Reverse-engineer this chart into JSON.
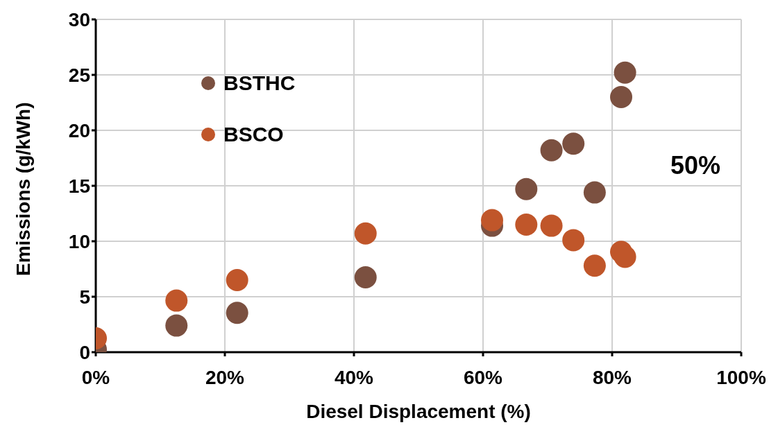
{
  "chart_data": {
    "type": "scatter",
    "xlabel": "Diesel Displacement (%)",
    "ylabel": "Emissions (g/kWh)",
    "x": [
      0,
      12.5,
      21.9,
      41.8,
      61.4,
      66.7,
      70.6,
      74.0,
      77.3,
      81.4,
      82.0
    ],
    "series": [
      {
        "name": "BSTHC",
        "color": "#7b5040",
        "values": [
          0.25,
          2.4,
          3.55,
          6.75,
          11.4,
          14.7,
          18.2,
          18.8,
          14.4,
          23.0,
          25.2
        ]
      },
      {
        "name": "BSCO",
        "color": "#c0562a",
        "values": [
          1.25,
          4.65,
          6.5,
          10.7,
          11.9,
          11.5,
          11.4,
          10.1,
          7.8,
          9.05,
          8.6
        ]
      }
    ],
    "xlim": [
      0,
      100
    ],
    "xticks": [
      {
        "value": 0,
        "label": "0%"
      },
      {
        "value": 20,
        "label": "20%"
      },
      {
        "value": 40,
        "label": "40%"
      },
      {
        "value": 60,
        "label": "60%"
      },
      {
        "value": 80,
        "label": "80%"
      },
      {
        "value": 100,
        "label": "100%"
      }
    ],
    "ylim": [
      0,
      30
    ],
    "yticks": [
      0,
      5,
      10,
      15,
      20,
      25,
      30
    ],
    "grid": true,
    "legend": "top left",
    "marker": "circle",
    "annotations": [
      "50%"
    ]
  }
}
